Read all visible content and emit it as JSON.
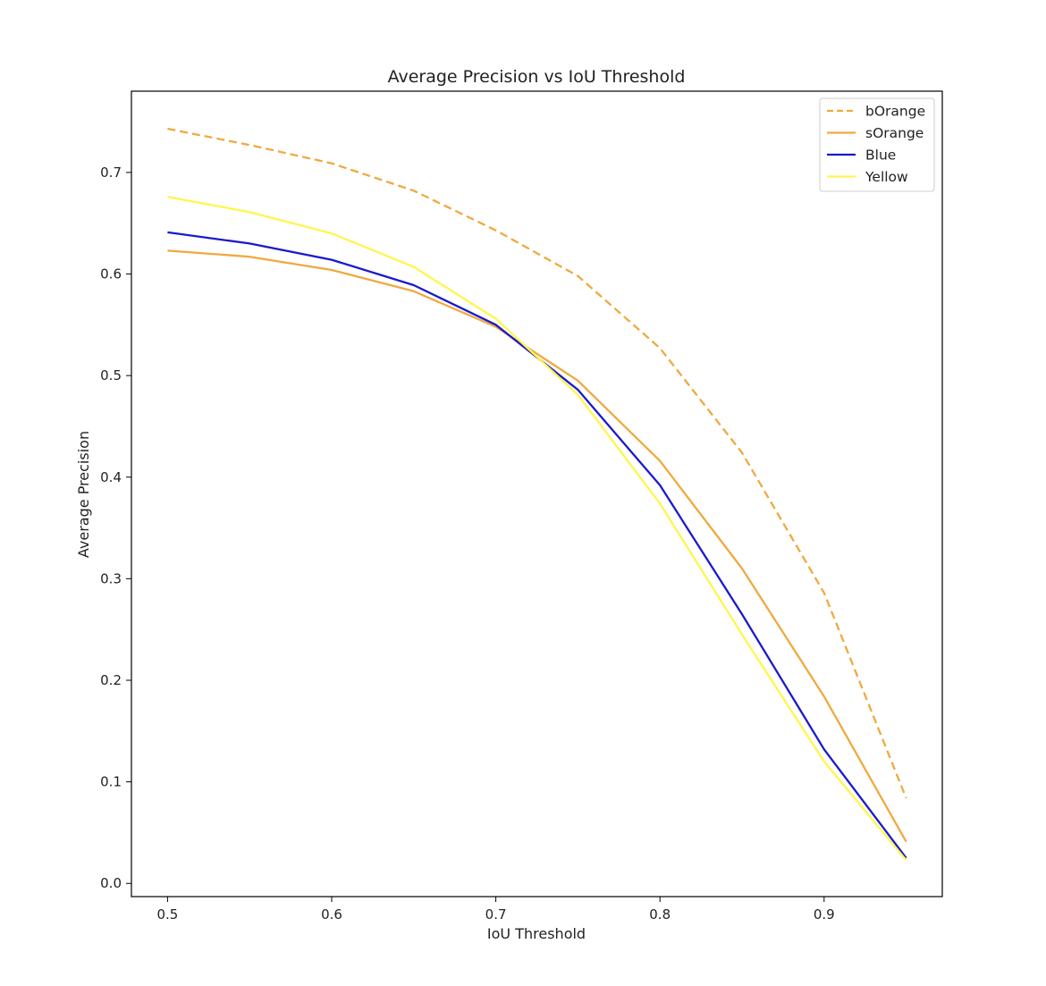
{
  "chart_data": {
    "type": "line",
    "title": "Average Precision vs IoU Threshold",
    "xlabel": "IoU Threshold",
    "ylabel": "Average Precision",
    "x": [
      0.5,
      0.55,
      0.6,
      0.65,
      0.7,
      0.75,
      0.8,
      0.85,
      0.9,
      0.95
    ],
    "xlim": [
      0.478,
      0.972
    ],
    "ylim": [
      -0.013,
      0.78
    ],
    "xticks": [
      0.5,
      0.6,
      0.7,
      0.8,
      0.9
    ],
    "xtick_labels": [
      "0.5",
      "0.6",
      "0.7",
      "0.8",
      "0.9"
    ],
    "yticks": [
      0.0,
      0.1,
      0.2,
      0.3,
      0.4,
      0.5,
      0.6,
      0.7
    ],
    "ytick_labels": [
      "0.0",
      "0.1",
      "0.2",
      "0.3",
      "0.4",
      "0.5",
      "0.6",
      "0.7"
    ],
    "grid": false,
    "legend_position": "top-right",
    "series": [
      {
        "name": "bOrange",
        "color": "#f0a93f",
        "dashed": true,
        "values": [
          0.743,
          0.727,
          0.709,
          0.682,
          0.643,
          0.598,
          0.527,
          0.424,
          0.286,
          0.084
        ]
      },
      {
        "name": "sOrange",
        "color": "#f0a93f",
        "dashed": false,
        "values": [
          0.623,
          0.617,
          0.604,
          0.583,
          0.548,
          0.495,
          0.416,
          0.31,
          0.184,
          0.041
        ]
      },
      {
        "name": "Blue",
        "color": "#1a1acc",
        "dashed": false,
        "values": [
          0.641,
          0.63,
          0.614,
          0.589,
          0.55,
          0.486,
          0.392,
          0.265,
          0.132,
          0.025
        ]
      },
      {
        "name": "Yellow",
        "color": "#fff64d",
        "dashed": false,
        "values": [
          0.676,
          0.661,
          0.64,
          0.607,
          0.556,
          0.481,
          0.374,
          0.245,
          0.12,
          0.023
        ]
      }
    ]
  }
}
